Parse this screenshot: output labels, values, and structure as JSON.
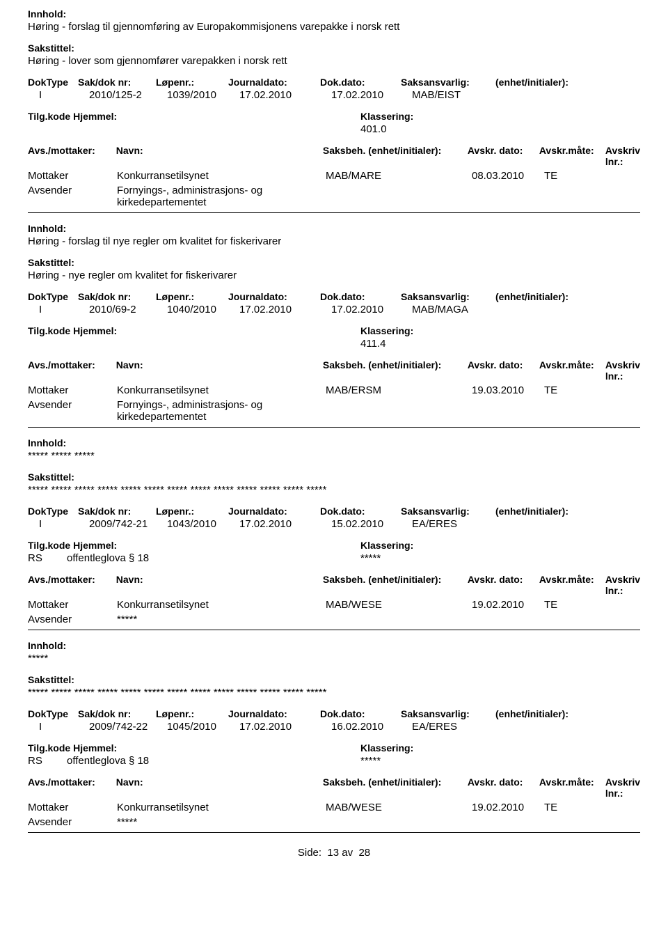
{
  "labels": {
    "innhold": "Innhold:",
    "sakstittel": "Sakstittel:",
    "doktype": "DokType",
    "saknr": "Sak/dok nr:",
    "lopenr": "Løpenr.:",
    "journaldato": "Journaldato:",
    "dokdato": "Dok.dato:",
    "saksansvarlig": "Saksansvarlig:",
    "enhet": "(enhet/initialer):",
    "tilgkode": "Tilg.kode",
    "hjemmel": "Hjemmel:",
    "klassering": "Klassering:",
    "avs_mottaker": "Avs./mottaker:",
    "navn": "Navn:",
    "saksbeh": "Saksbeh.",
    "saksbeh_enhet": "(enhet/initialer):",
    "avskr_dato": "Avskr. dato:",
    "avskr_mate": "Avskr.måte:",
    "avskriv_lnr": "Avskriv lnr.:",
    "mottaker": "Mottaker",
    "avsender": "Avsender",
    "side": "Side:",
    "av": "av"
  },
  "records": [
    {
      "innhold": "Høring - forslag til gjennomføring av Europakommisjonens varepakke i norsk rett",
      "sakstittel": "Høring - lover som gjennomfører varepakken i norsk rett",
      "doktype": "I",
      "saknr": "2010/125-2",
      "lopenr": "1039/2010",
      "journaldato": "17.02.2010",
      "dokdato": "17.02.2010",
      "saksansvarlig": "MAB/EIST",
      "tilgkode": "",
      "hjemmel": "",
      "klassering": "401.0",
      "parties": [
        {
          "role": "Mottaker",
          "name": "Konkurransetilsynet",
          "saksbeh": "MAB/MARE",
          "avskr_dato": "08.03.2010",
          "avskr_mate": "TE"
        },
        {
          "role": "Avsender",
          "name": "Fornyings-, administrasjons- og kirkedepartementet",
          "saksbeh": "",
          "avskr_dato": "",
          "avskr_mate": ""
        }
      ]
    },
    {
      "innhold": "Høring - forslag til nye regler om kvalitet for fiskerivarer",
      "sakstittel": "Høring - nye regler om kvalitet for fiskerivarer",
      "doktype": "I",
      "saknr": "2010/69-2",
      "lopenr": "1040/2010",
      "journaldato": "17.02.2010",
      "dokdato": "17.02.2010",
      "saksansvarlig": "MAB/MAGA",
      "tilgkode": "",
      "hjemmel": "",
      "klassering": "411.4",
      "parties": [
        {
          "role": "Mottaker",
          "name": "Konkurransetilsynet",
          "saksbeh": "MAB/ERSM",
          "avskr_dato": "19.03.2010",
          "avskr_mate": "TE"
        },
        {
          "role": "Avsender",
          "name": "Fornyings-, administrasjons- og kirkedepartementet",
          "saksbeh": "",
          "avskr_dato": "",
          "avskr_mate": ""
        }
      ]
    },
    {
      "innhold": "***** ***** *****",
      "sakstittel": "***** ***** ***** ***** ***** ***** ***** ***** ***** ***** ***** ***** *****",
      "doktype": "I",
      "saknr": "2009/742-21",
      "lopenr": "1043/2010",
      "journaldato": "17.02.2010",
      "dokdato": "15.02.2010",
      "saksansvarlig": "EA/ERES",
      "tilgkode": "RS",
      "hjemmel": "offentleglova § 18",
      "klassering": "*****",
      "parties": [
        {
          "role": "Mottaker",
          "name": "Konkurransetilsynet",
          "saksbeh": "MAB/WESE",
          "avskr_dato": "19.02.2010",
          "avskr_mate": "TE"
        },
        {
          "role": "Avsender",
          "name": "*****",
          "saksbeh": "",
          "avskr_dato": "",
          "avskr_mate": ""
        }
      ]
    },
    {
      "innhold": "*****",
      "sakstittel": "***** ***** ***** ***** ***** ***** ***** ***** ***** ***** ***** ***** *****",
      "doktype": "I",
      "saknr": "2009/742-22",
      "lopenr": "1045/2010",
      "journaldato": "17.02.2010",
      "dokdato": "16.02.2010",
      "saksansvarlig": "EA/ERES",
      "tilgkode": "RS",
      "hjemmel": "offentleglova § 18",
      "klassering": "*****",
      "parties": [
        {
          "role": "Mottaker",
          "name": "Konkurransetilsynet",
          "saksbeh": "MAB/WESE",
          "avskr_dato": "19.02.2010",
          "avskr_mate": "TE"
        },
        {
          "role": "Avsender",
          "name": "*****",
          "saksbeh": "",
          "avskr_dato": "",
          "avskr_mate": ""
        }
      ]
    }
  ],
  "footer": {
    "page": "13",
    "total": "28"
  }
}
